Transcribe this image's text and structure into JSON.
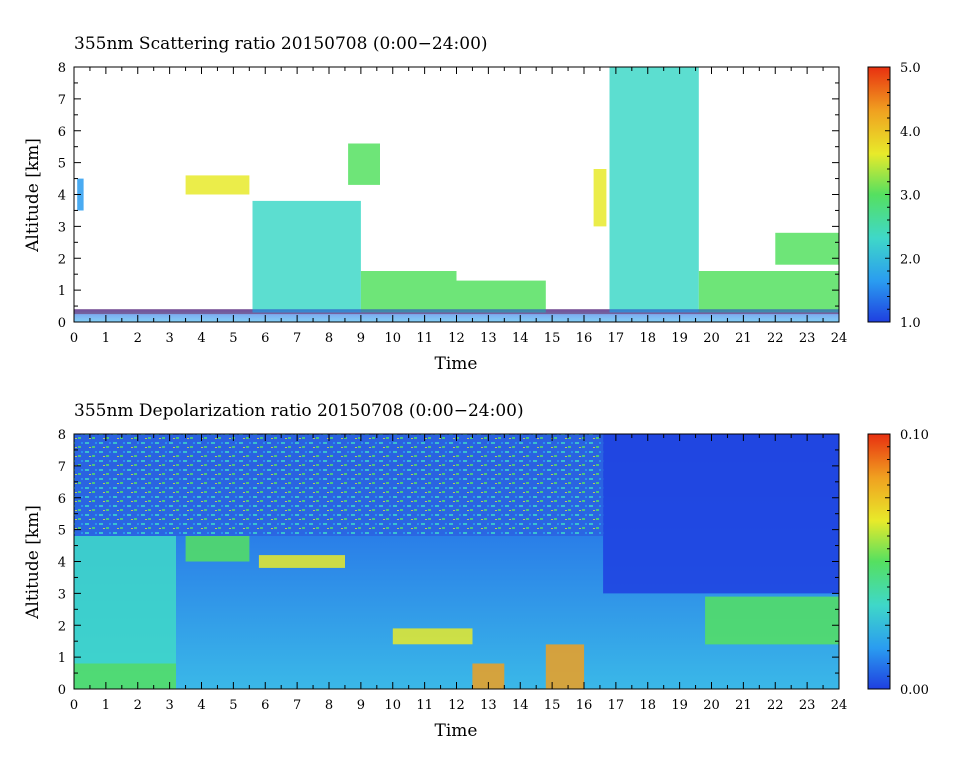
{
  "chart_data": [
    {
      "type": "heatmap",
      "title": "355nm Scattering ratio  20150708 (0:00−24:00)",
      "xlabel": "Time",
      "ylabel": "Altitude [km]",
      "xlim": [
        0,
        24
      ],
      "ylim": [
        0,
        8
      ],
      "x_ticks": [
        "0",
        "1",
        "2",
        "3",
        "4",
        "5",
        "6",
        "7",
        "8",
        "9",
        "10",
        "11",
        "12",
        "13",
        "14",
        "15",
        "16",
        "17",
        "18",
        "19",
        "20",
        "21",
        "22",
        "23",
        "24"
      ],
      "y_ticks": [
        "0",
        "1",
        "2",
        "3",
        "4",
        "5",
        "6",
        "7",
        "8"
      ],
      "colorbar": {
        "range": [
          1.0,
          5.0
        ],
        "labels": [
          "1.0",
          "2.0",
          "3.0",
          "4.0",
          "5.0"
        ],
        "colors": [
          "#1f3fe0",
          "#2a9cf0",
          "#3fd8c8",
          "#55e060",
          "#e8ea2a",
          "#f0a020",
          "#e83010"
        ]
      },
      "features": [
        {
          "t0": 0,
          "t1": 24,
          "z0": 0.25,
          "z1": 0.4,
          "level": 0.95
        },
        {
          "t0": 5.6,
          "t1": 9.0,
          "z0": 0.3,
          "z1": 3.8,
          "level": 0.3
        },
        {
          "t0": 9.0,
          "t1": 12.0,
          "z0": 0.3,
          "z1": 1.6,
          "level": 0.5
        },
        {
          "t0": 12.0,
          "t1": 14.8,
          "z0": 0.3,
          "z1": 1.3,
          "level": 0.55
        },
        {
          "t0": 16.8,
          "t1": 19.6,
          "z0": 0.3,
          "z1": 8.0,
          "level": 0.3
        },
        {
          "t0": 19.6,
          "t1": 24.0,
          "z0": 0.3,
          "z1": 1.6,
          "level": 0.5
        },
        {
          "t0": 3.5,
          "t1": 5.5,
          "z0": 4.0,
          "z1": 4.6,
          "level": 0.6
        },
        {
          "t0": 8.6,
          "t1": 9.6,
          "z0": 4.3,
          "z1": 5.6,
          "level": 0.55
        },
        {
          "t0": 16.3,
          "t1": 16.7,
          "z0": 3.0,
          "z1": 4.8,
          "level": 0.6
        },
        {
          "t0": 22.0,
          "t1": 24.0,
          "z0": 1.8,
          "z1": 2.8,
          "level": 0.45
        },
        {
          "t0": 0.1,
          "t1": 0.3,
          "z0": 3.5,
          "z1": 4.5,
          "level": 0.2
        }
      ]
    },
    {
      "type": "heatmap",
      "title": "355nm Depolarization ratio  20150708 (0:00−24:00)",
      "xlabel": "Time",
      "ylabel": "Altitude [km]",
      "xlim": [
        0,
        24
      ],
      "ylim": [
        0,
        8
      ],
      "x_ticks": [
        "0",
        "1",
        "2",
        "3",
        "4",
        "5",
        "6",
        "7",
        "8",
        "9",
        "10",
        "11",
        "12",
        "13",
        "14",
        "15",
        "16",
        "17",
        "18",
        "19",
        "20",
        "21",
        "22",
        "23",
        "24"
      ],
      "y_ticks": [
        "0",
        "1",
        "2",
        "3",
        "4",
        "5",
        "6",
        "7",
        "8"
      ],
      "colorbar": {
        "range": [
          0.0,
          0.1
        ],
        "labels": [
          "0.00",
          "0.10"
        ],
        "colors": [
          "#1f3fe0",
          "#2a9cf0",
          "#3fd8c8",
          "#55e060",
          "#e8ea2a",
          "#f0a020",
          "#e83010"
        ]
      },
      "features": [
        {
          "t0": 0,
          "t1": 3.2,
          "z0": 0.0,
          "z1": 0.8,
          "level": 0.55
        },
        {
          "t0": 0,
          "t1": 3.2,
          "z0": 0.8,
          "z1": 4.8,
          "level": 0.3
        },
        {
          "t0": 3.5,
          "t1": 5.5,
          "z0": 4.0,
          "z1": 4.8,
          "level": 0.55
        },
        {
          "t0": 5.8,
          "t1": 8.5,
          "z0": 3.8,
          "z1": 4.2,
          "level": 0.7
        },
        {
          "t0": 10.0,
          "t1": 12.5,
          "z0": 1.4,
          "z1": 1.9,
          "level": 0.7
        },
        {
          "t0": 12.5,
          "t1": 13.5,
          "z0": 0.0,
          "z1": 0.8,
          "level": 0.8
        },
        {
          "t0": 14.8,
          "t1": 16.0,
          "z0": 0.0,
          "z1": 1.4,
          "level": 0.9
        },
        {
          "t0": 19.8,
          "t1": 24.0,
          "z0": 1.4,
          "z1": 2.9,
          "level": 0.5
        },
        {
          "t0": 16.6,
          "t1": 24.0,
          "z0": 3.0,
          "z1": 8.0,
          "level": 0.05
        }
      ]
    }
  ]
}
